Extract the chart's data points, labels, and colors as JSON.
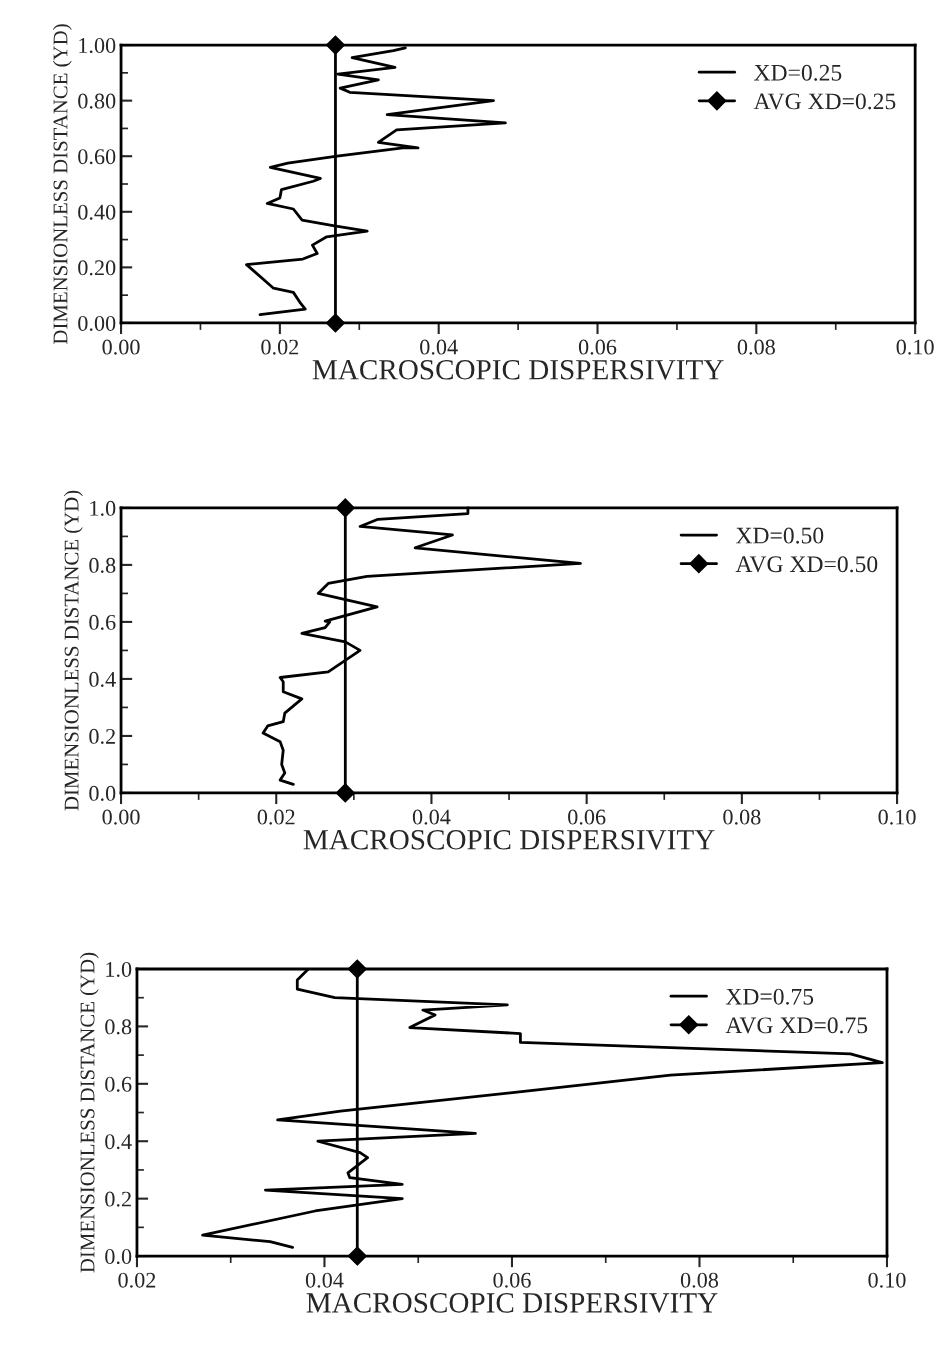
{
  "chart_data": [
    {
      "type": "line",
      "xlabel": "MACROSCOPIC DISPERSIVITY",
      "ylabel": "DIMENSIONLESS DISTANCE (YD)",
      "xlim": [
        0,
        0.1
      ],
      "ylim": [
        0,
        1
      ],
      "xticks": [
        {
          "value": 0,
          "label": "0.00"
        },
        {
          "value": 0.02,
          "label": "0.02"
        },
        {
          "value": 0.04,
          "label": "0.04"
        },
        {
          "value": 0.06,
          "label": "0.06"
        },
        {
          "value": 0.08,
          "label": "0.08"
        },
        {
          "value": 0.1,
          "label": "0.10"
        }
      ],
      "yticks": [
        {
          "value": 0,
          "label": "0.00"
        },
        {
          "value": 0.2,
          "label": "0.20"
        },
        {
          "value": 0.4,
          "label": "0.40"
        },
        {
          "value": 0.6,
          "label": "0.60"
        },
        {
          "value": 0.8,
          "label": "0.80"
        },
        {
          "value": 1,
          "label": "1.00"
        }
      ],
      "grid": false,
      "legend": "top right",
      "series": [
        {
          "name": "XD=0.25",
          "color": "#000000",
          "marker": "none",
          "x": [
            0.0175,
            0.0232,
            0.0225,
            0.0217,
            0.0192,
            0.0162,
            0.0158,
            0.0229,
            0.0247,
            0.0241,
            0.0259,
            0.031,
            0.0267,
            0.0228,
            0.0217,
            0.0184,
            0.02,
            0.0202,
            0.0242,
            0.0251,
            0.0188,
            0.021,
            0.0272,
            0.0355,
            0.0374,
            0.0324,
            0.0347,
            0.0484,
            0.0335,
            0.0469,
            0.0288,
            0.0276,
            0.0324,
            0.0273,
            0.0345,
            0.0291,
            0.0343,
            0.0358
          ],
          "values": [
            0.03,
            0.05,
            0.075,
            0.11,
            0.125,
            0.2,
            0.21,
            0.23,
            0.25,
            0.28,
            0.31,
            0.33,
            0.35,
            0.37,
            0.41,
            0.43,
            0.45,
            0.48,
            0.51,
            0.52,
            0.56,
            0.575,
            0.6,
            0.63,
            0.63,
            0.65,
            0.695,
            0.72,
            0.75,
            0.8,
            0.83,
            0.845,
            0.875,
            0.895,
            0.92,
            0.955,
            0.98,
            0.99
          ]
        },
        {
          "name": "AVG XD=0.25",
          "color": "#000000",
          "marker": "diamond",
          "x": [
            0.027,
            0.027
          ],
          "values": [
            0,
            1
          ]
        }
      ]
    },
    {
      "type": "line",
      "xlabel": "MACROSCOPIC DISPERSIVITY",
      "ylabel": "DIMENSIONLESS DISTANCE (YD)",
      "xlim": [
        0,
        0.1
      ],
      "ylim": [
        0,
        1
      ],
      "xticks": [
        {
          "value": 0,
          "label": "0.00"
        },
        {
          "value": 0.02,
          "label": "0.02"
        },
        {
          "value": 0.04,
          "label": "0.04"
        },
        {
          "value": 0.06,
          "label": "0.06"
        },
        {
          "value": 0.08,
          "label": "0.08"
        },
        {
          "value": 0.1,
          "label": "0.10"
        }
      ],
      "yticks": [
        {
          "value": 0,
          "label": "0.0"
        },
        {
          "value": 0.2,
          "label": "0.2"
        },
        {
          "value": 0.4,
          "label": "0.4"
        },
        {
          "value": 0.6,
          "label": "0.6"
        },
        {
          "value": 0.8,
          "label": "0.8"
        },
        {
          "value": 1,
          "label": "1.0"
        }
      ],
      "grid": false,
      "legend": "top right",
      "series": [
        {
          "name": "XD=0.50",
          "color": "#000000",
          "marker": "none",
          "x": [
            0.0222,
            0.0205,
            0.0211,
            0.0207,
            0.0209,
            0.0205,
            0.0183,
            0.0189,
            0.0209,
            0.0211,
            0.0233,
            0.0209,
            0.0209,
            0.0205,
            0.0267,
            0.0308,
            0.0289,
            0.0233,
            0.0263,
            0.0269,
            0.0263,
            0.033,
            0.0254,
            0.0267,
            0.0317,
            0.0592,
            0.0379,
            0.0427,
            0.0308,
            0.0331,
            0.0447,
            0.0447
          ],
          "values": [
            0.03,
            0.045,
            0.07,
            0.1,
            0.15,
            0.18,
            0.21,
            0.235,
            0.25,
            0.28,
            0.33,
            0.355,
            0.39,
            0.405,
            0.425,
            0.5,
            0.53,
            0.56,
            0.58,
            0.6,
            0.603,
            0.653,
            0.7,
            0.735,
            0.76,
            0.805,
            0.86,
            0.905,
            0.935,
            0.96,
            0.98,
            1.0
          ]
        },
        {
          "name": "AVG XD=0.50",
          "color": "#000000",
          "marker": "diamond",
          "x": [
            0.0289,
            0.0289
          ],
          "values": [
            0,
            1
          ]
        }
      ]
    },
    {
      "type": "line",
      "xlabel": "MACROSCOPIC DISPERSIVITY",
      "ylabel": "DIMENSIONLESS DISTANCE (YD)",
      "xlim": [
        0.02,
        0.1
      ],
      "ylim": [
        0,
        1
      ],
      "xticks": [
        {
          "value": 0.02,
          "label": "0.02"
        },
        {
          "value": 0.04,
          "label": "0.04"
        },
        {
          "value": 0.06,
          "label": "0.06"
        },
        {
          "value": 0.08,
          "label": "0.08"
        },
        {
          "value": 0.1,
          "label": "0.10"
        }
      ],
      "yticks": [
        {
          "value": 0,
          "label": "0.0"
        },
        {
          "value": 0.2,
          "label": "0.2"
        },
        {
          "value": 0.4,
          "label": "0.4"
        },
        {
          "value": 0.6,
          "label": "0.6"
        },
        {
          "value": 0.8,
          "label": "0.8"
        },
        {
          "value": 1,
          "label": "1.0"
        }
      ],
      "grid": false,
      "legend": "top right",
      "series": [
        {
          "name": "XD=0.75",
          "color": "#000000",
          "marker": "none",
          "x": [
            0.0366,
            0.0342,
            0.027,
            0.039,
            0.0483,
            0.0337,
            0.0483,
            0.0427,
            0.0425,
            0.0446,
            0.0438,
            0.0393,
            0.0561,
            0.035,
            0.0417,
            0.0603,
            0.0769,
            0.0995,
            0.0961,
            0.0609,
            0.0609,
            0.0491,
            0.0518,
            0.0505,
            0.0595,
            0.0411,
            0.0371,
            0.0371,
            0.0382
          ],
          "values": [
            0.03,
            0.05,
            0.073,
            0.157,
            0.2,
            0.23,
            0.25,
            0.273,
            0.29,
            0.343,
            0.36,
            0.4,
            0.427,
            0.474,
            0.505,
            0.57,
            0.63,
            0.674,
            0.704,
            0.744,
            0.775,
            0.796,
            0.84,
            0.857,
            0.875,
            0.9,
            0.93,
            0.962,
            0.997
          ]
        },
        {
          "name": "AVG XD=0.75",
          "color": "#000000",
          "marker": "diamond",
          "x": [
            0.0435,
            0.0435
          ],
          "values": [
            0,
            1
          ]
        }
      ]
    }
  ]
}
